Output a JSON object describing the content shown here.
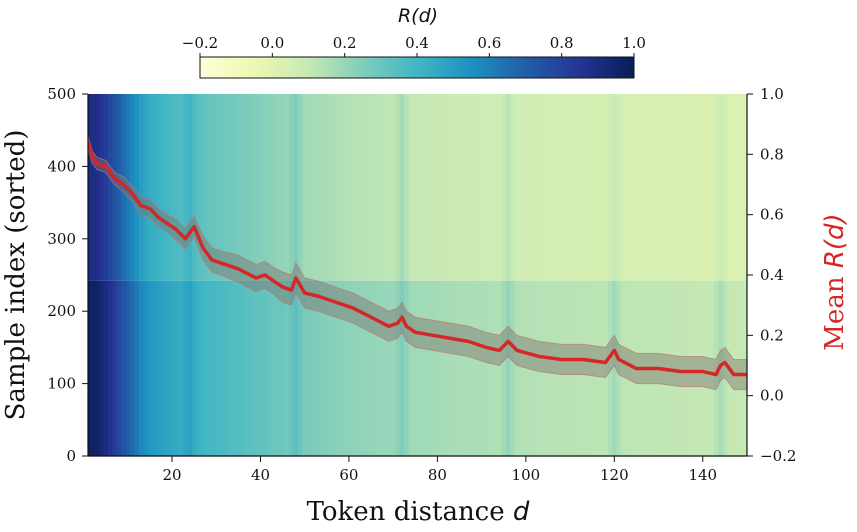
{
  "chart_data": {
    "type": "heatmap",
    "xlabel_prefix": "Token distance ",
    "xlabel_var": "d",
    "ylabel": "Sample index (sorted)",
    "y2label_prefix": "Mean ",
    "y2label_var": "R(d)",
    "colorbar_label": "R(d)",
    "colorbar_range": [
      -0.2,
      1.0
    ],
    "colorbar_ticks": [
      "−0.2",
      "0.0",
      "0.2",
      "0.4",
      "0.6",
      "0.8",
      "1.0"
    ],
    "colormap": [
      "#ffffd9",
      "#edf8b1",
      "#c7e9b4",
      "#7fcdbb",
      "#41b6c4",
      "#1d91c0",
      "#225ea8",
      "#253494",
      "#081d58"
    ],
    "xlim": [
      1,
      150
    ],
    "xticks": [
      "20",
      "40",
      "60",
      "80",
      "100",
      "120",
      "140"
    ],
    "ylim": [
      0,
      500
    ],
    "yticks": [
      "0",
      "100",
      "200",
      "300",
      "400",
      "500"
    ],
    "y2lim": [
      -0.2,
      1.0
    ],
    "y2ticks": [
      "−0.2",
      "0.0",
      "0.2",
      "0.4",
      "0.6",
      "0.8",
      "1.0"
    ],
    "series": [
      {
        "kind": "mean_line_with_band",
        "color": "#d62728",
        "x": [
          1,
          2,
          3,
          5,
          7,
          9,
          11,
          13,
          15,
          17,
          19,
          21,
          23,
          24,
          25,
          27,
          29,
          31,
          35,
          39,
          41,
          43,
          45,
          47,
          48,
          50,
          53,
          57,
          61,
          65,
          69,
          71,
          72,
          73,
          75,
          79,
          83,
          87,
          91,
          94,
          96,
          98,
          103,
          108,
          113,
          118,
          120,
          121,
          125,
          130,
          135,
          140,
          143,
          144,
          145,
          147,
          150
        ],
        "y": [
          0.84,
          0.79,
          0.77,
          0.76,
          0.72,
          0.7,
          0.67,
          0.63,
          0.62,
          0.59,
          0.57,
          0.55,
          0.52,
          0.54,
          0.56,
          0.49,
          0.45,
          0.44,
          0.42,
          0.39,
          0.4,
          0.38,
          0.36,
          0.35,
          0.39,
          0.34,
          0.33,
          0.31,
          0.29,
          0.26,
          0.23,
          0.24,
          0.26,
          0.23,
          0.21,
          0.2,
          0.19,
          0.18,
          0.16,
          0.15,
          0.18,
          0.15,
          0.13,
          0.12,
          0.12,
          0.11,
          0.15,
          0.12,
          0.09,
          0.09,
          0.08,
          0.08,
          0.07,
          0.1,
          0.11,
          0.07,
          0.07
        ],
        "band_halfwidth": [
          0.02,
          0.02,
          0.02,
          0.02,
          0.02,
          0.025,
          0.025,
          0.03,
          0.03,
          0.03,
          0.03,
          0.035,
          0.035,
          0.035,
          0.035,
          0.04,
          0.04,
          0.04,
          0.045,
          0.045,
          0.045,
          0.045,
          0.05,
          0.05,
          0.05,
          0.05,
          0.05,
          0.05,
          0.05,
          0.05,
          0.05,
          0.05,
          0.05,
          0.05,
          0.05,
          0.05,
          0.05,
          0.05,
          0.05,
          0.05,
          0.05,
          0.05,
          0.05,
          0.05,
          0.05,
          0.05,
          0.05,
          0.05,
          0.05,
          0.05,
          0.05,
          0.05,
          0.05,
          0.05,
          0.05,
          0.05,
          0.05
        ]
      }
    ],
    "heatmap_column_profile": {
      "x": [
        1,
        3,
        5,
        7,
        9,
        11,
        13,
        15,
        20,
        25,
        30,
        40,
        50,
        60,
        80,
        100,
        120,
        150
      ],
      "value": [
        0.9,
        0.88,
        0.82,
        0.74,
        0.66,
        0.58,
        0.5,
        0.44,
        0.38,
        0.34,
        0.3,
        0.24,
        0.18,
        0.14,
        0.09,
        0.06,
        0.04,
        0.02
      ]
    },
    "heatmap_row_band": {
      "y_from": 0,
      "y_to": 242,
      "offset": 0.08
    },
    "heatmap_column_spikes": [
      24,
      48,
      72,
      96,
      120,
      144
    ]
  }
}
